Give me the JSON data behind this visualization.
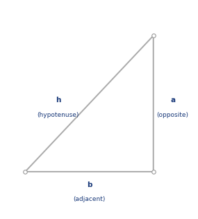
{
  "vertices": {
    "A": [
      0.12,
      0.18
    ],
    "B": [
      0.78,
      0.88
    ],
    "C": [
      0.78,
      0.18
    ]
  },
  "triangle_color": "#aaaaaa",
  "triangle_linewidth": 1.4,
  "dot_color": "white",
  "dot_edgecolor": "#999999",
  "dot_size": 4,
  "label_h": "h",
  "label_h_sub": "(hypotenuse)",
  "label_a": "a",
  "label_a_sub": "(opposite)",
  "label_b": "b",
  "label_b_sub": "(adjacent)",
  "label_color": "#1a3a7a",
  "label_fontsize": 7.5,
  "label_fontsize_sub": 6.5,
  "bg_color": "#ffffff",
  "figsize": [
    2.85,
    3.15
  ],
  "dpi": 100
}
